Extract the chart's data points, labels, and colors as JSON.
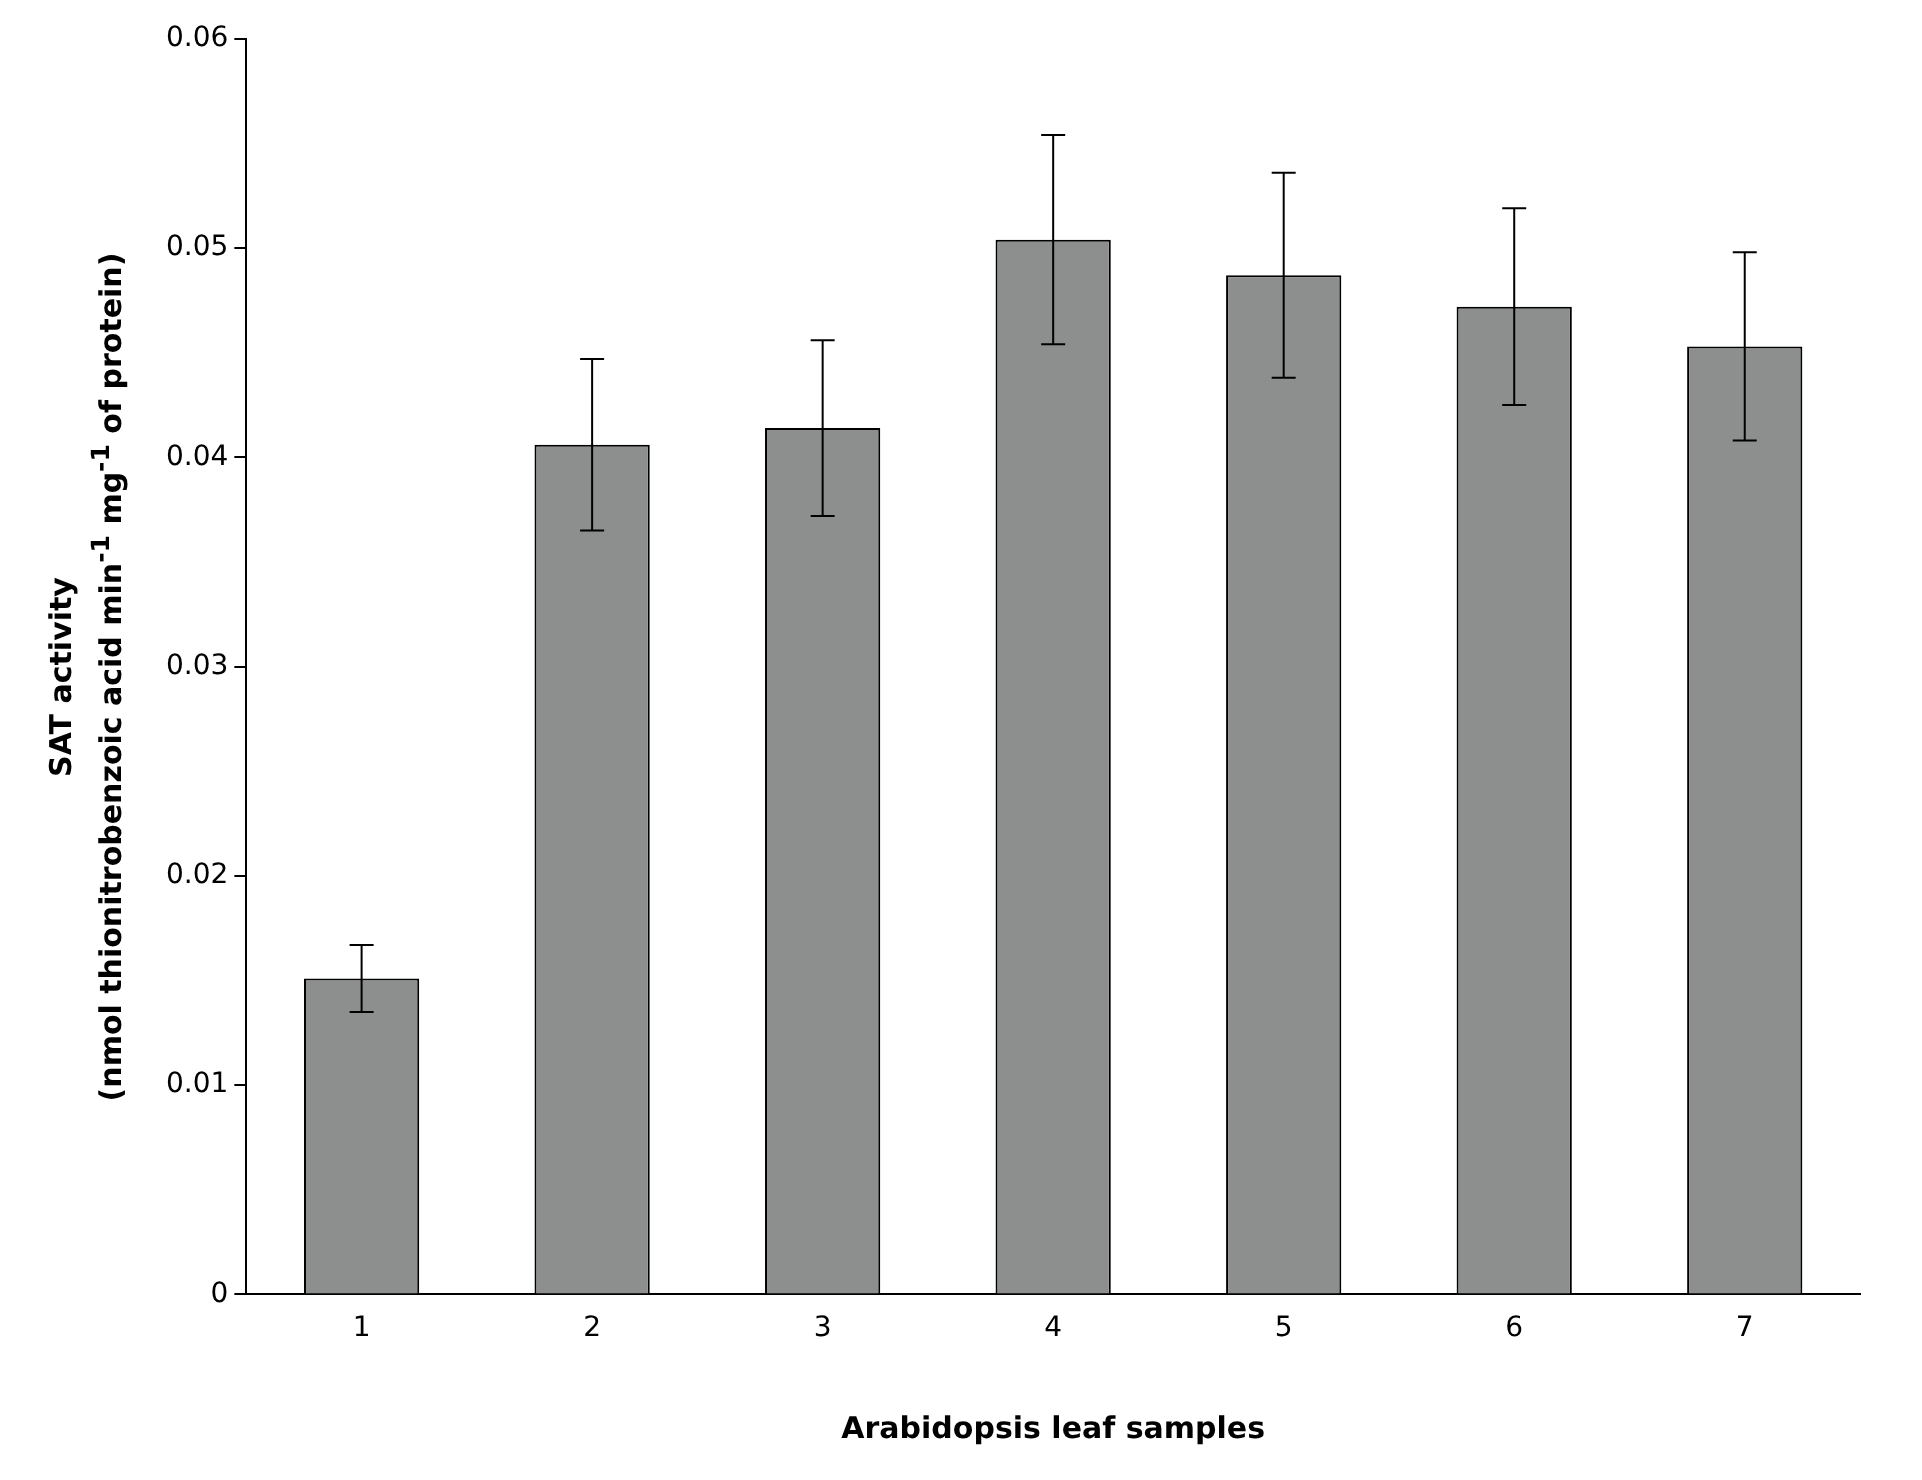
{
  "chart_data": {
    "type": "bar",
    "xlabel": "Arabidopsis leaf samples",
    "ylabel": "SAT activity\n(nmol thionitrobenzoic acid min$^{-1}$ mg$^{-1}$ of protein)",
    "categories": [
      "1",
      "2",
      "3",
      "4",
      "5",
      "6",
      "7"
    ],
    "values": [
      0.0151,
      0.0406,
      0.0414,
      0.0504,
      0.0487,
      0.0472,
      0.0453
    ],
    "errors": [
      0.0016,
      0.0041,
      0.0042,
      0.005,
      0.0049,
      0.0047,
      0.0045
    ],
    "color": "#8c8f8e",
    "ylim": [
      0,
      0.06
    ],
    "yticks": [
      0,
      0.01,
      0.02,
      0.03,
      0.04,
      0.05,
      0.06
    ],
    "grid": false,
    "legend": false
  }
}
